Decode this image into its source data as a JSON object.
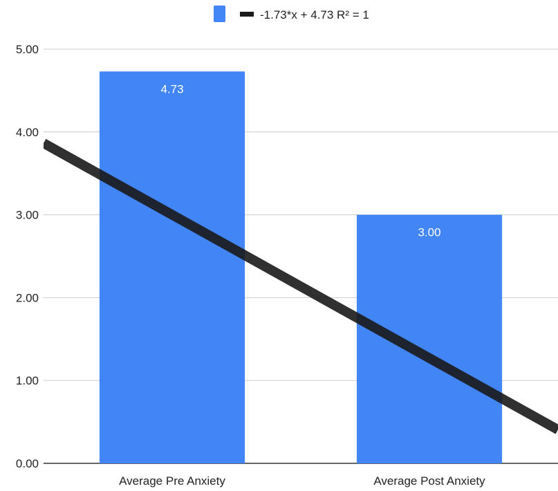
{
  "chart_data": {
    "type": "bar",
    "categories": [
      "Average Pre Anxiety",
      "Average Post Anxiety"
    ],
    "values": [
      4.73,
      3.0
    ],
    "data_labels": [
      "4.73",
      "3.00"
    ],
    "ylim": [
      0,
      5
    ],
    "yticks": [
      0,
      1,
      2,
      3,
      4,
      5
    ],
    "ytick_labels": [
      "0.00",
      "1.00",
      "2.00",
      "3.00",
      "4.00",
      "5.00"
    ],
    "grid": true,
    "bar_color": "#4285f4",
    "trendline": {
      "slope": -1.73,
      "intercept": 4.73,
      "label": "-1.73*x + 4.73 R² = 1",
      "color": "#1a1a1a"
    },
    "legend_position": "top"
  }
}
